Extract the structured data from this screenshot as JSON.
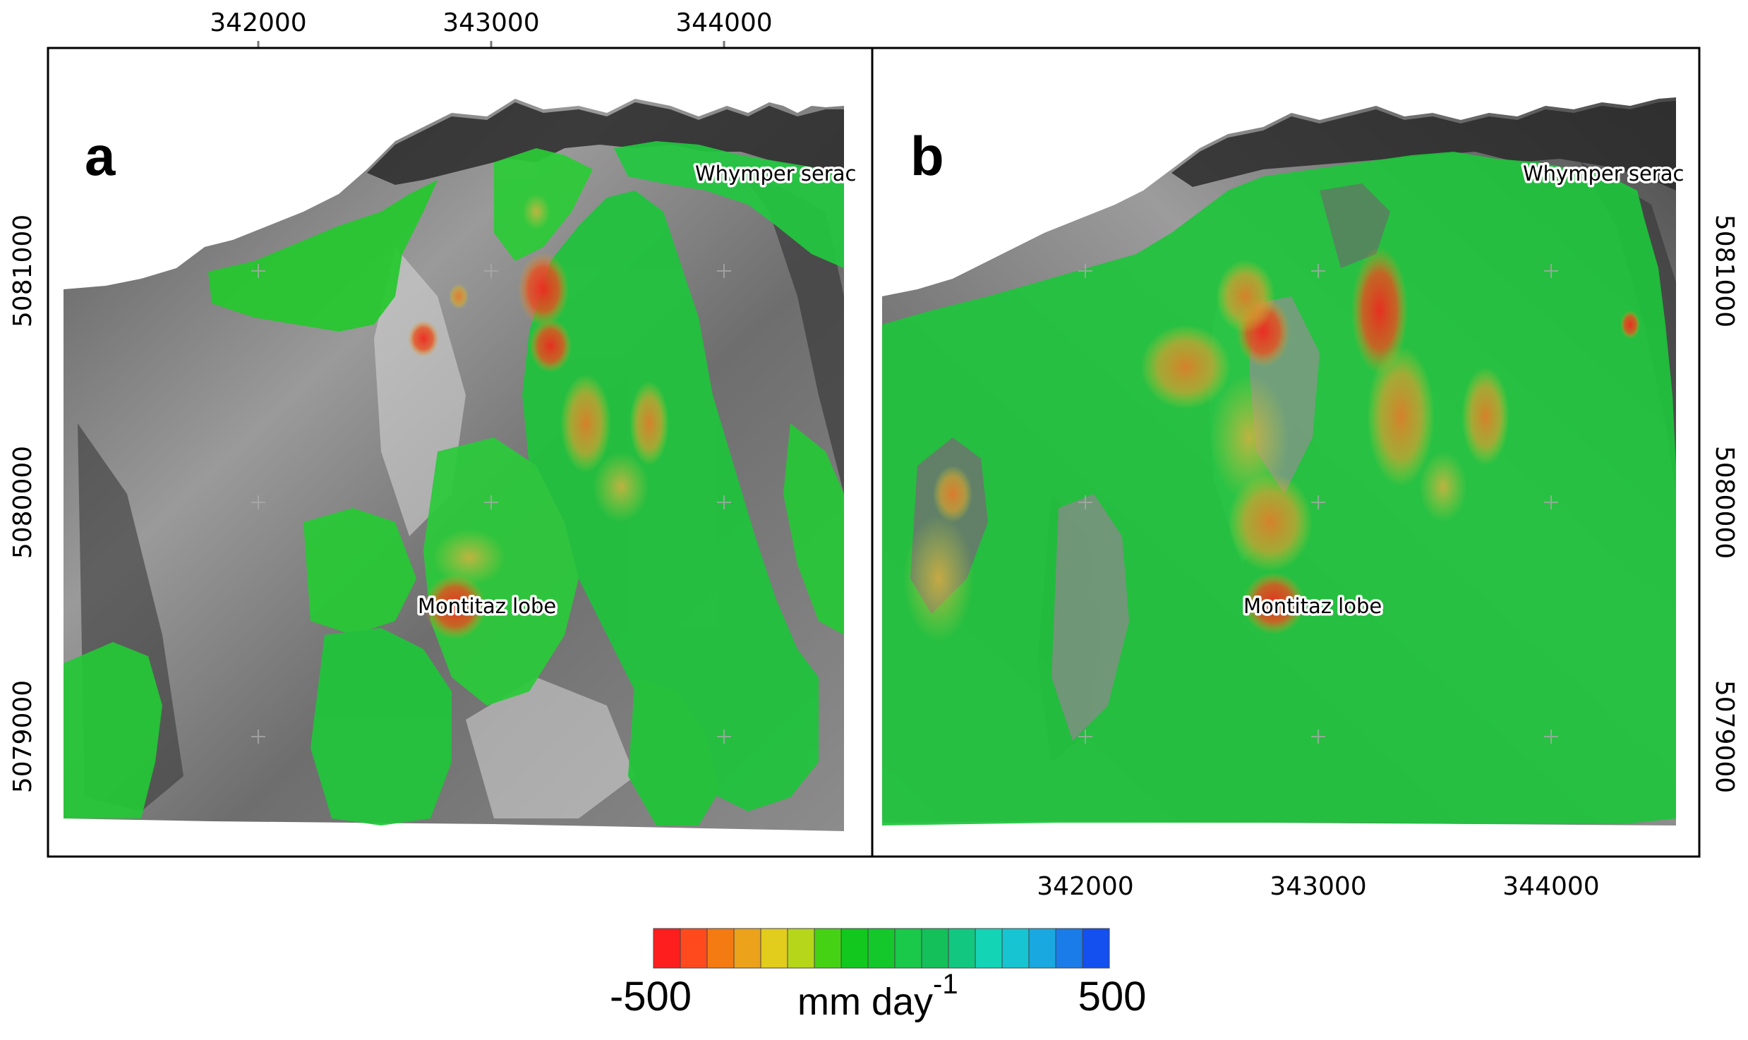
{
  "figure": {
    "panels": [
      {
        "letter": "a",
        "labels": {
          "serac": "Whymper serac",
          "lobe": "Montitaz lobe"
        }
      },
      {
        "letter": "b",
        "labels": {
          "serac": "Whymper serac",
          "lobe": "Montitaz lobe"
        }
      }
    ],
    "axes": {
      "x_ticks": [
        "342000",
        "343000",
        "344000"
      ],
      "y_ticks": [
        "5081000",
        "5080000",
        "5079000"
      ]
    },
    "legend": {
      "min_label": "-500",
      "max_label": "500",
      "unit_base": "mm day",
      "unit_exponent": "-1",
      "colors": [
        "#ff1e1e",
        "#ff4a1e",
        "#f47a12",
        "#eca21a",
        "#e2cc1c",
        "#b6d61a",
        "#46d214",
        "#12c81e",
        "#14c82c",
        "#1ac84a",
        "#14c05a",
        "#12c880",
        "#14d4b6",
        "#16c4d2",
        "#1aa8e0",
        "#1a7ce8",
        "#1450f0"
      ]
    }
  }
}
